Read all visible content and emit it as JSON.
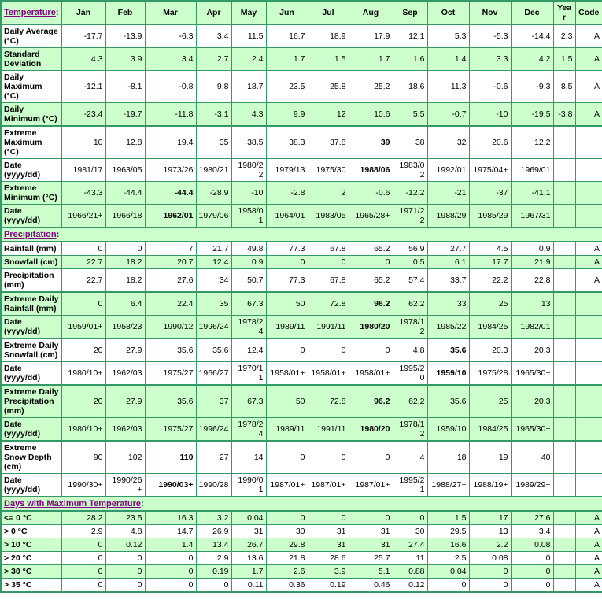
{
  "colors": {
    "row_green": "#CCFFCC",
    "row_white": "#FFFFFF",
    "border_green": "#339966",
    "label_blue": "#0000CC",
    "link_purple": "#800080",
    "text_black": "#000000"
  },
  "table": {
    "header": {
      "title_link": "Temperature",
      "colon": ":",
      "columns": [
        "Jan",
        "Feb",
        "Mar",
        "Apr",
        "May",
        "Jun",
        "Jul",
        "Aug",
        "Sep",
        "Oct",
        "Nov",
        "Dec",
        "Year",
        "Code"
      ]
    },
    "rows": [
      {
        "label": "Daily Average (°C)",
        "bg": "white",
        "section_start": true,
        "values": [
          "-17.7",
          "-13.9",
          "-6.3",
          "3.4",
          "11.5",
          "16.7",
          "18.9",
          "17.9",
          "12.1",
          "5.3",
          "-5.3",
          "-14.4"
        ],
        "year": "2.3",
        "code": "A"
      },
      {
        "label": "Standard Deviation",
        "bg": "green",
        "values": [
          "4.3",
          "3.9",
          "3.4",
          "2.7",
          "2.4",
          "1.7",
          "1.5",
          "1.7",
          "1.6",
          "1.4",
          "3.3",
          "4.2"
        ],
        "year": "1.5",
        "code": "A"
      },
      {
        "label": "Daily Maximum (°C)",
        "bg": "white",
        "values": [
          "-12.1",
          "-8.1",
          "-0.8",
          "9.8",
          "18.7",
          "23.5",
          "25.8",
          "25.2",
          "18.6",
          "11.3",
          "-0.6",
          "-9.3"
        ],
        "year": "8.5",
        "code": "A"
      },
      {
        "label": "Daily Minimum (°C)",
        "bg": "green",
        "values": [
          "-23.4",
          "-19.7",
          "-11.8",
          "-3.1",
          "4.3",
          "9.9",
          "12",
          "10.6",
          "5.5",
          "-0.7",
          "-10",
          "-19.5"
        ],
        "year": "-3.8",
        "code": "A"
      },
      {
        "label": "Extreme Maximum (°C)",
        "bg": "white",
        "section_start": true,
        "values": [
          "10",
          "12.8",
          "19.4",
          "35",
          "38.5",
          "38.3",
          "37.8",
          "39",
          "38",
          "32",
          "20.6",
          "12.2"
        ],
        "bold": [
          7
        ],
        "year": "",
        "code": ""
      },
      {
        "label": "Date (yyyy/dd)",
        "bg": "white",
        "values": [
          "1981/17",
          "1963/05",
          "1973/26",
          "1980/21",
          "1980/22",
          "1979/13",
          "1975/30",
          "1988/06",
          "1983/02",
          "1992/01",
          "1975/04+",
          "1969/01"
        ],
        "bold": [
          7
        ],
        "year": "",
        "code": ""
      },
      {
        "label": "Extreme Minimum (°C)",
        "bg": "green",
        "values": [
          "-43.3",
          "-44.4",
          "-44.4",
          "-28.9",
          "-10",
          "-2.8",
          "2",
          "-0.6",
          "-12.2",
          "-21",
          "-37",
          "-41.1"
        ],
        "bold": [
          2
        ],
        "year": "",
        "code": ""
      },
      {
        "label": "Date (yyyy/dd)",
        "bg": "green",
        "values": [
          "1966/21+",
          "1966/18",
          "1962/01",
          "1979/06",
          "1958/01",
          "1964/01",
          "1983/05",
          "1965/28+",
          "1971/22",
          "1988/29",
          "1985/29",
          "1967/31"
        ],
        "bold": [
          2
        ],
        "year": "",
        "code": ""
      },
      {
        "type": "section",
        "link": "Precipitation",
        "colon": ":",
        "bg": "green"
      },
      {
        "label": "Rainfall (mm)",
        "bg": "white",
        "values": [
          "0",
          "0",
          "7",
          "21.7",
          "49.8",
          "77.3",
          "67.8",
          "65.2",
          "56.9",
          "27.7",
          "4.5",
          "0.9"
        ],
        "year": "",
        "code": "A"
      },
      {
        "label": "Snowfall (cm)",
        "bg": "green",
        "values": [
          "22.7",
          "18.2",
          "20.7",
          "12.4",
          "0.9",
          "0",
          "0",
          "0",
          "0.5",
          "6.1",
          "17.7",
          "21.9"
        ],
        "year": "",
        "code": "A"
      },
      {
        "label": "Precipitation (mm)",
        "bg": "white",
        "values": [
          "22.7",
          "18.2",
          "27.6",
          "34",
          "50.7",
          "77.3",
          "67.8",
          "65.2",
          "57.4",
          "33.7",
          "22.2",
          "22.8"
        ],
        "year": "",
        "code": "A"
      },
      {
        "label": "Extreme Daily Rainfall (mm)",
        "bg": "green",
        "section_start": true,
        "values": [
          "0",
          "6.4",
          "22.4",
          "35",
          "67.3",
          "50",
          "72.8",
          "96.2",
          "62.2",
          "33",
          "25",
          "13"
        ],
        "bold": [
          7
        ],
        "year": "",
        "code": ""
      },
      {
        "label": "Date (yyyy/dd)",
        "bg": "green",
        "values": [
          "1959/01+",
          "1958/23",
          "1990/12",
          "1996/24",
          "1978/24",
          "1989/11",
          "1991/11",
          "1980/20",
          "1978/12",
          "1985/22",
          "1984/25",
          "1982/01"
        ],
        "bold": [
          7
        ],
        "year": "",
        "code": ""
      },
      {
        "label": "Extreme Daily Snowfall (cm)",
        "bg": "white",
        "section_start": true,
        "values": [
          "20",
          "27.9",
          "35.6",
          "35.6",
          "12.4",
          "0",
          "0",
          "0",
          "4.8",
          "35.6",
          "20.3",
          "20.3"
        ],
        "bold": [
          9
        ],
        "year": "",
        "code": ""
      },
      {
        "label": "Date (yyyy/dd)",
        "bg": "white",
        "values": [
          "1980/10+",
          "1962/03",
          "1975/27",
          "1966/27",
          "1970/11",
          "1958/01+",
          "1958/01+",
          "1958/01+",
          "1995/20",
          "1959/10",
          "1975/28",
          "1965/30+"
        ],
        "bold": [
          9
        ],
        "year": "",
        "code": ""
      },
      {
        "label": "Extreme Daily Precipitation (mm)",
        "bg": "green",
        "section_start": true,
        "values": [
          "20",
          "27.9",
          "35.6",
          "37",
          "67.3",
          "50",
          "72.8",
          "96.2",
          "62.2",
          "35.6",
          "25",
          "20.3"
        ],
        "bold": [
          7
        ],
        "year": "",
        "code": ""
      },
      {
        "label": "Date (yyyy/dd)",
        "bg": "green",
        "values": [
          "1980/10+",
          "1962/03",
          "1975/27",
          "1996/24",
          "1978/24",
          "1989/11",
          "1991/11",
          "1980/20",
          "1978/12",
          "1959/10",
          "1984/25",
          "1965/30+"
        ],
        "bold": [
          7
        ],
        "year": "",
        "code": ""
      },
      {
        "label": "Extreme Snow Depth (cm)",
        "bg": "white",
        "section_start": true,
        "values": [
          "90",
          "102",
          "110",
          "27",
          "14",
          "0",
          "0",
          "0",
          "4",
          "18",
          "19",
          "40"
        ],
        "bold": [
          2
        ],
        "year": "",
        "code": ""
      },
      {
        "label": "Date (yyyy/dd)",
        "bg": "white",
        "values": [
          "1990/30+",
          "1990/26+",
          "1990/03+",
          "1990/28",
          "1990/01",
          "1987/01+",
          "1987/01+",
          "1987/01+",
          "1995/21",
          "1988/27+",
          "1988/19+",
          "1989/29+"
        ],
        "bold": [
          2
        ],
        "year": "",
        "code": ""
      },
      {
        "type": "section",
        "link": "Days with Maximum Temperature",
        "colon": ":",
        "bg": "green"
      },
      {
        "label": "<= 0 °C",
        "bg": "green",
        "values": [
          "28.2",
          "23.5",
          "16.3",
          "3.2",
          "0.04",
          "0",
          "0",
          "0",
          "0",
          "1.5",
          "17",
          "27.6"
        ],
        "year": "",
        "code": "A"
      },
      {
        "label": "> 0 °C",
        "bg": "white",
        "values": [
          "2.9",
          "4.8",
          "14.7",
          "26.9",
          "31",
          "30",
          "31",
          "31",
          "30",
          "29.5",
          "13",
          "3.4"
        ],
        "year": "",
        "code": "A"
      },
      {
        "label": "> 10 °C",
        "bg": "green",
        "values": [
          "0",
          "0.12",
          "1.4",
          "13.4",
          "26.7",
          "29.8",
          "31",
          "31",
          "27.4",
          "16.6",
          "2.2",
          "0.08"
        ],
        "year": "",
        "code": "A"
      },
      {
        "label": "> 20 °C",
        "bg": "white",
        "values": [
          "0",
          "0",
          "0",
          "2.9",
          "13.6",
          "21.8",
          "28.6",
          "25.7",
          "11",
          "2.5",
          "0.08",
          "0"
        ],
        "year": "",
        "code": "A"
      },
      {
        "label": "> 30 °C",
        "bg": "green",
        "values": [
          "0",
          "0",
          "0",
          "0.19",
          "1.7",
          "2.6",
          "3.9",
          "5.1",
          "0.88",
          "0.04",
          "0",
          "0"
        ],
        "year": "",
        "code": "A"
      },
      {
        "label": "> 35 °C",
        "bg": "white",
        "values": [
          "0",
          "0",
          "0",
          "0",
          "0.11",
          "0.36",
          "0.19",
          "0.46",
          "0.12",
          "0",
          "0",
          "0"
        ],
        "year": "",
        "code": "A"
      }
    ]
  }
}
